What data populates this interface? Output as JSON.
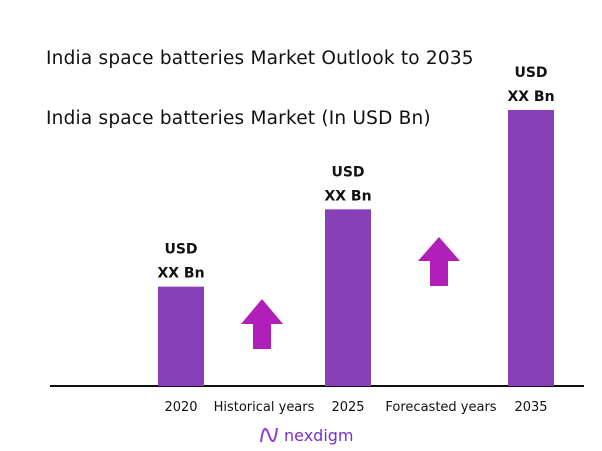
{
  "chart_data": {
    "type": "bar",
    "title": "India space batteries Market Outlook to 2035",
    "subtitle": "India space batteries Market (In USD Bn)",
    "categories": [
      "2020",
      "2025",
      "2035"
    ],
    "values_relative": [
      0.36,
      0.64,
      1.0
    ],
    "data_labels": [
      [
        "USD",
        "XX Bn"
      ],
      [
        "USD",
        "XX Bn"
      ],
      [
        "USD",
        "XX Bn"
      ]
    ],
    "annotations": [
      {
        "text": "Historical years",
        "between": [
          "2020",
          "2025"
        ],
        "arrow": "up"
      },
      {
        "text": "Forecasted years",
        "between": [
          "2025",
          "2035"
        ],
        "arrow": "up"
      }
    ],
    "grid": false,
    "legend": "none",
    "colors": {
      "bar": "#8740b8",
      "arrow": "#b01fb8",
      "axis": "#111111"
    }
  },
  "brand": {
    "name": "nexdigm"
  }
}
